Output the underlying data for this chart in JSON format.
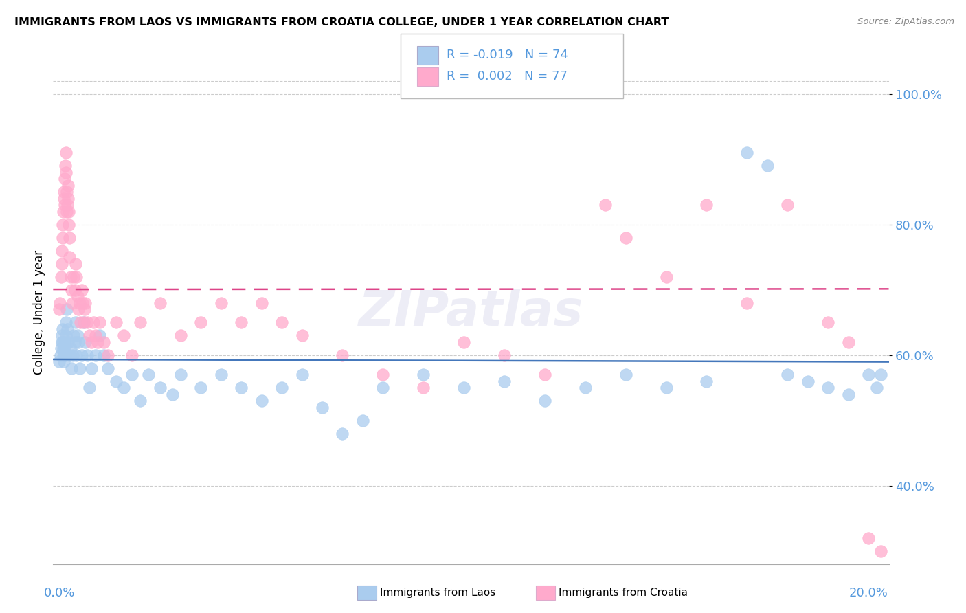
{
  "title": "IMMIGRANTS FROM LAOS VS IMMIGRANTS FROM CROATIA COLLEGE, UNDER 1 YEAR CORRELATION CHART",
  "source": "Source: ZipAtlas.com",
  "ylabel": "College, Under 1 year",
  "xlim": [
    -0.15,
    20.5
  ],
  "ylim": [
    28.0,
    105.0
  ],
  "yticks": [
    40.0,
    60.0,
    80.0,
    100.0
  ],
  "ytick_labels": [
    "40.0%",
    "60.0%",
    "80.0%",
    "100.0%"
  ],
  "laos_R": -0.019,
  "laos_N": 74,
  "croatia_R": 0.002,
  "croatia_N": 77,
  "laos_color": "#aaccee",
  "croatia_color": "#ffaacc",
  "laos_line_color": "#4477bb",
  "croatia_line_color": "#dd4488",
  "laos_line_style": "solid",
  "croatia_line_style": "dashed",
  "laos_x": [
    0.0,
    0.03,
    0.05,
    0.06,
    0.07,
    0.08,
    0.09,
    0.1,
    0.11,
    0.12,
    0.13,
    0.14,
    0.15,
    0.16,
    0.17,
    0.18,
    0.2,
    0.22,
    0.25,
    0.28,
    0.3,
    0.33,
    0.35,
    0.38,
    0.4,
    0.42,
    0.45,
    0.48,
    0.5,
    0.55,
    0.6,
    0.65,
    0.7,
    0.75,
    0.8,
    0.9,
    1.0,
    1.1,
    1.2,
    1.4,
    1.6,
    1.8,
    2.0,
    2.2,
    2.5,
    2.8,
    3.0,
    3.5,
    4.0,
    4.5,
    5.0,
    5.5,
    6.0,
    6.5,
    7.0,
    7.5,
    8.0,
    9.0,
    10.0,
    11.0,
    12.0,
    13.0,
    14.0,
    15.0,
    16.0,
    17.0,
    17.5,
    18.0,
    18.5,
    19.0,
    19.5,
    20.0,
    20.2,
    20.3
  ],
  "laos_y": [
    59.0,
    60.0,
    61.0,
    62.0,
    63.0,
    64.0,
    62.0,
    61.0,
    60.0,
    59.0,
    61.0,
    62.0,
    60.0,
    63.0,
    65.0,
    67.0,
    64.0,
    62.0,
    60.0,
    61.0,
    58.0,
    60.0,
    63.0,
    62.0,
    65.0,
    60.0,
    63.0,
    62.0,
    58.0,
    60.0,
    65.0,
    62.0,
    60.0,
    55.0,
    58.0,
    60.0,
    63.0,
    60.0,
    58.0,
    56.0,
    55.0,
    57.0,
    53.0,
    57.0,
    55.0,
    54.0,
    57.0,
    55.0,
    57.0,
    55.0,
    53.0,
    55.0,
    57.0,
    52.0,
    48.0,
    50.0,
    55.0,
    57.0,
    55.0,
    56.0,
    53.0,
    55.0,
    57.0,
    55.0,
    56.0,
    91.0,
    89.0,
    57.0,
    56.0,
    55.0,
    54.0,
    57.0,
    55.0,
    57.0
  ],
  "croatia_x": [
    0.0,
    0.02,
    0.04,
    0.06,
    0.07,
    0.08,
    0.09,
    0.1,
    0.11,
    0.12,
    0.13,
    0.14,
    0.15,
    0.16,
    0.17,
    0.18,
    0.19,
    0.2,
    0.21,
    0.22,
    0.23,
    0.24,
    0.25,
    0.26,
    0.28,
    0.3,
    0.32,
    0.35,
    0.38,
    0.4,
    0.42,
    0.45,
    0.48,
    0.5,
    0.52,
    0.55,
    0.58,
    0.6,
    0.62,
    0.65,
    0.7,
    0.75,
    0.8,
    0.85,
    0.9,
    0.95,
    1.0,
    1.1,
    1.2,
    1.4,
    1.6,
    1.8,
    2.0,
    2.5,
    3.0,
    3.5,
    4.0,
    4.5,
    5.0,
    5.5,
    6.0,
    7.0,
    8.0,
    9.0,
    10.0,
    11.0,
    12.0,
    13.5,
    14.0,
    15.0,
    16.0,
    17.0,
    18.0,
    19.0,
    19.5,
    20.0,
    20.3
  ],
  "croatia_y": [
    67.0,
    68.0,
    72.0,
    74.0,
    76.0,
    78.0,
    80.0,
    82.0,
    84.0,
    85.0,
    83.0,
    87.0,
    89.0,
    91.0,
    88.0,
    85.0,
    82.0,
    83.0,
    86.0,
    84.0,
    82.0,
    80.0,
    78.0,
    75.0,
    72.0,
    70.0,
    68.0,
    72.0,
    70.0,
    74.0,
    72.0,
    69.0,
    67.0,
    68.0,
    65.0,
    70.0,
    68.0,
    65.0,
    67.0,
    68.0,
    65.0,
    63.0,
    62.0,
    65.0,
    63.0,
    62.0,
    65.0,
    62.0,
    60.0,
    65.0,
    63.0,
    60.0,
    65.0,
    68.0,
    63.0,
    65.0,
    68.0,
    65.0,
    68.0,
    65.0,
    63.0,
    60.0,
    57.0,
    55.0,
    62.0,
    60.0,
    57.0,
    83.0,
    78.0,
    72.0,
    83.0,
    68.0,
    83.0,
    65.0,
    62.0,
    32.0,
    30.0
  ]
}
